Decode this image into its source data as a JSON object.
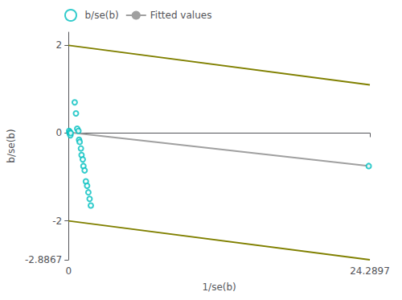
{
  "chart_data": {
    "type": "scatter",
    "xlabel": "1/se(b)",
    "ylabel": "b/se(b)",
    "xlim": [
      0,
      24.2897
    ],
    "xticks": [
      0,
      24.2897
    ],
    "ylim": [
      -2.8867,
      2.3
    ],
    "yticks": [
      -2.8867,
      -2,
      0,
      2
    ],
    "grid": false,
    "legend": "upper left",
    "series": [
      {
        "name": "b/se(b)",
        "type": "scatter",
        "marker": "circle",
        "color": "#00BFBF",
        "x": [
          0.05,
          0.08,
          0.12,
          0.15,
          0.18,
          0.5,
          0.6,
          0.7,
          0.8,
          0.85,
          0.9,
          1.0,
          1.05,
          1.15,
          1.2,
          1.3,
          1.4,
          1.5,
          1.6,
          1.7,
          1.8,
          24.2
        ],
        "values": [
          0.05,
          0.0,
          0.02,
          -0.05,
          0.0,
          0.7,
          0.45,
          0.1,
          0.05,
          -0.15,
          -0.2,
          -0.35,
          -0.5,
          -0.6,
          -0.75,
          -0.85,
          -1.1,
          -1.2,
          -1.35,
          -1.5,
          -1.65,
          -0.75
        ]
      },
      {
        "name": "Fitted values",
        "type": "line",
        "color": "#A0A0A0",
        "x": [
          0,
          24.2897
        ],
        "values": [
          0.02,
          -0.75
        ]
      },
      {
        "type": "line",
        "color": "#808000",
        "x": [
          0,
          24.2897
        ],
        "values": [
          2.0,
          1.1
        ]
      },
      {
        "type": "line",
        "color": "#808000",
        "x": [
          0,
          24.2897
        ],
        "values": [
          -2.0,
          -2.8867
        ]
      }
    ]
  }
}
